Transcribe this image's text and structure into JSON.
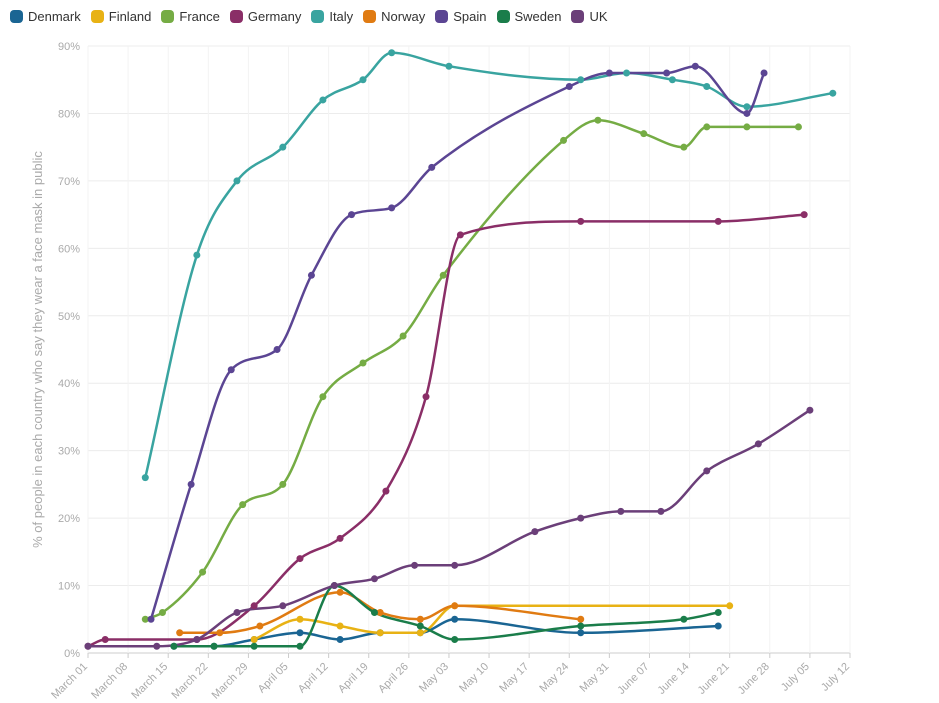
{
  "chart_data": {
    "type": "line",
    "title": "",
    "xlabel": "",
    "ylabel": "% of people in each country who say they wear a face mask in public",
    "ylim": [
      0,
      90
    ],
    "yticks": [
      0,
      10,
      20,
      30,
      40,
      50,
      60,
      70,
      80,
      90
    ],
    "ytick_labels": [
      "0%",
      "10%",
      "20%",
      "30%",
      "40%",
      "50%",
      "60%",
      "70%",
      "80%",
      "90%"
    ],
    "xlim": [
      "2020-03-01",
      "2020-07-12"
    ],
    "xticks": [
      "2020-03-01",
      "2020-03-08",
      "2020-03-15",
      "2020-03-22",
      "2020-03-29",
      "2020-04-05",
      "2020-04-12",
      "2020-04-19",
      "2020-04-26",
      "2020-05-03",
      "2020-05-10",
      "2020-05-17",
      "2020-05-24",
      "2020-05-31",
      "2020-06-07",
      "2020-06-14",
      "2020-06-21",
      "2020-06-28",
      "2020-07-05",
      "2020-07-12"
    ],
    "xtick_labels": [
      "March 01",
      "March 08",
      "March 15",
      "March 22",
      "March 29",
      "April 05",
      "April 12",
      "April 19",
      "April 26",
      "May 03",
      "May 10",
      "May 17",
      "May 24",
      "May 31",
      "June 07",
      "June 14",
      "June 21",
      "June 28",
      "July 05",
      "July 12"
    ],
    "grid": true,
    "legend_position": "top-left",
    "series": [
      {
        "name": "Denmark",
        "color": "#1a6593",
        "points": [
          [
            "2020-03-16",
            1
          ],
          [
            "2020-03-23",
            1
          ],
          [
            "2020-03-30",
            2
          ],
          [
            "2020-04-07",
            3
          ],
          [
            "2020-04-14",
            2
          ],
          [
            "2020-04-21",
            3
          ],
          [
            "2020-04-28",
            3
          ],
          [
            "2020-05-04",
            5
          ],
          [
            "2020-05-26",
            3
          ],
          [
            "2020-06-19",
            4
          ]
        ]
      },
      {
        "name": "Finland",
        "color": "#e8b214",
        "points": [
          [
            "2020-03-30",
            2
          ],
          [
            "2020-04-07",
            5
          ],
          [
            "2020-04-14",
            4
          ],
          [
            "2020-04-21",
            3
          ],
          [
            "2020-04-28",
            3
          ],
          [
            "2020-05-04",
            7
          ],
          [
            "2020-06-21",
            7
          ]
        ]
      },
      {
        "name": "France",
        "color": "#75ac44",
        "points": [
          [
            "2020-03-11",
            5
          ],
          [
            "2020-03-14",
            6
          ],
          [
            "2020-03-21",
            12
          ],
          [
            "2020-03-28",
            22
          ],
          [
            "2020-04-04",
            25
          ],
          [
            "2020-04-11",
            38
          ],
          [
            "2020-04-18",
            43
          ],
          [
            "2020-04-25",
            47
          ],
          [
            "2020-05-02",
            56
          ],
          [
            "2020-05-23",
            76
          ],
          [
            "2020-05-29",
            79
          ],
          [
            "2020-06-06",
            77
          ],
          [
            "2020-06-13",
            75
          ],
          [
            "2020-06-17",
            78
          ],
          [
            "2020-06-24",
            78
          ],
          [
            "2020-07-03",
            78
          ]
        ]
      },
      {
        "name": "Germany",
        "color": "#8a2e67",
        "points": [
          [
            "2020-03-01",
            1
          ],
          [
            "2020-03-04",
            2
          ],
          [
            "2020-03-20",
            2
          ],
          [
            "2020-03-30",
            7
          ],
          [
            "2020-04-07",
            14
          ],
          [
            "2020-04-14",
            17
          ],
          [
            "2020-04-22",
            24
          ],
          [
            "2020-04-29",
            38
          ],
          [
            "2020-05-05",
            62
          ],
          [
            "2020-05-26",
            64
          ],
          [
            "2020-06-19",
            64
          ],
          [
            "2020-07-04",
            65
          ]
        ]
      },
      {
        "name": "Italy",
        "color": "#39a4a0",
        "points": [
          [
            "2020-03-11",
            26
          ],
          [
            "2020-03-20",
            59
          ],
          [
            "2020-03-27",
            70
          ],
          [
            "2020-04-04",
            75
          ],
          [
            "2020-04-11",
            82
          ],
          [
            "2020-04-18",
            85
          ],
          [
            "2020-04-23",
            89
          ],
          [
            "2020-05-03",
            87
          ],
          [
            "2020-05-26",
            85
          ],
          [
            "2020-06-03",
            86
          ],
          [
            "2020-06-11",
            85
          ],
          [
            "2020-06-17",
            84
          ],
          [
            "2020-06-24",
            81
          ],
          [
            "2020-07-09",
            83
          ]
        ]
      },
      {
        "name": "Norway",
        "color": "#e07b12",
        "points": [
          [
            "2020-03-17",
            3
          ],
          [
            "2020-03-24",
            3
          ],
          [
            "2020-03-31",
            4
          ],
          [
            "2020-04-14",
            9
          ],
          [
            "2020-04-21",
            6
          ],
          [
            "2020-04-28",
            5
          ],
          [
            "2020-05-04",
            7
          ],
          [
            "2020-05-26",
            5
          ]
        ]
      },
      {
        "name": "Spain",
        "color": "#5b4593",
        "points": [
          [
            "2020-03-12",
            5
          ],
          [
            "2020-03-19",
            25
          ],
          [
            "2020-03-26",
            42
          ],
          [
            "2020-04-03",
            45
          ],
          [
            "2020-04-09",
            56
          ],
          [
            "2020-04-16",
            65
          ],
          [
            "2020-04-23",
            66
          ],
          [
            "2020-04-30",
            72
          ],
          [
            "2020-05-24",
            84
          ],
          [
            "2020-05-31",
            86
          ],
          [
            "2020-06-10",
            86
          ],
          [
            "2020-06-15",
            87
          ],
          [
            "2020-06-24",
            80
          ],
          [
            "2020-06-27",
            86
          ]
        ]
      },
      {
        "name": "Sweden",
        "color": "#1a7d4a",
        "points": [
          [
            "2020-03-16",
            1
          ],
          [
            "2020-03-23",
            1
          ],
          [
            "2020-03-30",
            1
          ],
          [
            "2020-04-07",
            1
          ],
          [
            "2020-04-13",
            10
          ],
          [
            "2020-04-20",
            6
          ],
          [
            "2020-04-28",
            4
          ],
          [
            "2020-05-04",
            2
          ],
          [
            "2020-05-26",
            4
          ],
          [
            "2020-06-13",
            5
          ],
          [
            "2020-06-19",
            6
          ]
        ]
      },
      {
        "name": "UK",
        "color": "#6b3f79",
        "points": [
          [
            "2020-03-01",
            1
          ],
          [
            "2020-03-13",
            1
          ],
          [
            "2020-03-20",
            2
          ],
          [
            "2020-03-27",
            6
          ],
          [
            "2020-04-04",
            7
          ],
          [
            "2020-04-13",
            10
          ],
          [
            "2020-04-20",
            11
          ],
          [
            "2020-04-27",
            13
          ],
          [
            "2020-05-04",
            13
          ],
          [
            "2020-05-18",
            18
          ],
          [
            "2020-05-26",
            20
          ],
          [
            "2020-06-02",
            21
          ],
          [
            "2020-06-09",
            21
          ],
          [
            "2020-06-17",
            27
          ],
          [
            "2020-06-26",
            31
          ],
          [
            "2020-07-05",
            36
          ]
        ]
      }
    ]
  }
}
